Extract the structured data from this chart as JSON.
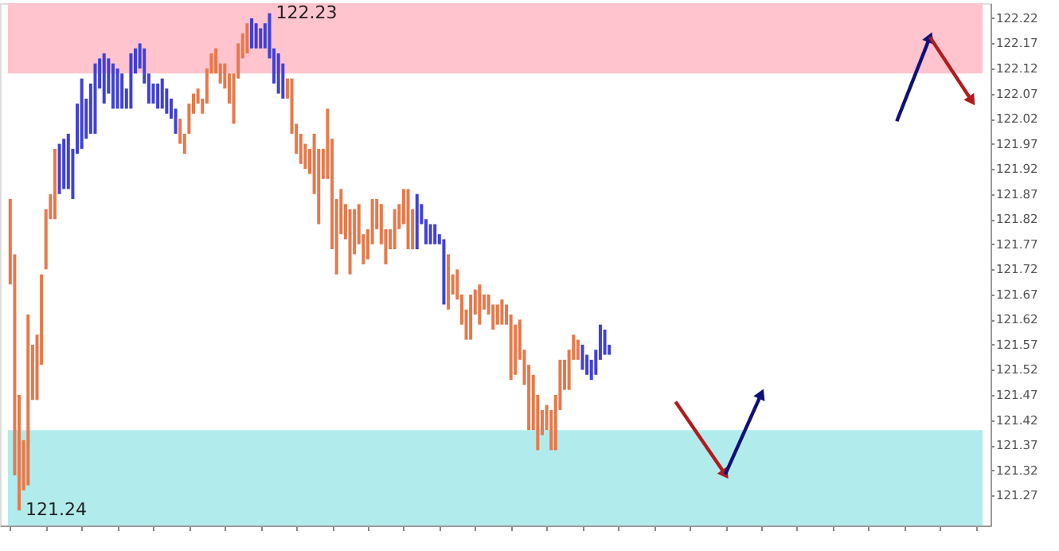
{
  "chart_data": {
    "type": "candlestick",
    "categories": [
      null,
      null,
      null,
      null,
      null,
      null,
      null,
      null,
      null,
      null,
      null,
      null,
      null,
      null,
      null,
      null,
      null,
      null,
      null,
      null,
      null,
      null,
      null,
      null,
      null,
      null,
      null,
      null,
      null,
      null,
      null,
      null,
      null,
      null,
      null,
      null,
      null,
      null,
      null,
      null,
      null,
      null,
      null,
      null,
      null,
      null,
      null,
      null,
      null,
      null,
      null,
      null,
      null,
      null,
      null,
      null,
      null,
      null,
      null,
      null,
      null,
      null,
      null,
      null,
      null,
      null,
      null,
      null,
      null,
      null,
      null,
      null,
      null,
      null,
      null,
      null,
      null,
      null,
      null,
      null,
      null,
      null,
      null,
      null,
      null,
      null,
      null,
      null,
      null,
      null,
      null,
      null,
      null,
      null,
      null,
      null,
      null,
      null,
      null,
      null,
      null,
      null,
      null,
      null,
      null,
      null,
      null,
      null,
      null,
      null,
      null,
      null,
      null,
      null,
      null,
      null,
      null,
      null,
      null,
      null,
      null,
      null,
      null,
      null,
      null,
      null,
      null,
      null,
      null,
      null,
      null,
      null,
      null,
      null,
      null,
      null,
      null,
      null,
      null,
      null,
      null,
      null,
      null,
      null,
      null,
      null,
      null,
      null,
      null,
      null,
      null,
      null,
      null,
      null,
      null,
      null,
      null,
      null,
      null,
      null,
      null,
      null,
      null,
      null,
      null,
      null,
      null,
      null,
      null,
      null,
      null,
      null,
      null,
      null,
      null,
      null,
      null,
      null,
      null,
      null,
      null,
      null,
      null,
      null,
      null,
      null,
      null,
      null,
      null,
      null,
      null,
      null,
      null,
      null,
      null,
      null,
      null,
      null,
      null,
      null,
      null,
      null,
      null,
      null,
      null,
      null,
      null,
      null,
      null,
      null,
      null,
      null,
      null,
      null,
      null,
      null,
      null,
      null
    ],
    "ylim": [
      121.21,
      122.25
    ],
    "yticks": [
      122.22,
      122.17,
      122.12,
      122.07,
      122.02,
      121.97,
      121.92,
      121.87,
      121.82,
      121.77,
      121.72,
      121.67,
      121.62,
      121.57,
      121.52,
      121.47,
      121.42,
      121.37,
      121.32,
      121.27
    ],
    "tick_labels": "y",
    "grid": false,
    "bands": [
      {
        "axis": "y",
        "from": 122.11,
        "to": 122.25,
        "color": "#ffc4ce"
      },
      {
        "axis": "y",
        "from": 121.21,
        "to": 121.4,
        "color": "#b2ebec"
      }
    ],
    "annotations": [
      "122.23",
      "121.24"
    ],
    "colors": [
      "#e8784a",
      "#e8784a",
      "#e8784a",
      "#e8784a",
      "#e8784a",
      "#e8784a",
      "#e8784a",
      "#e8784a",
      "#e8784a",
      "#e8784a",
      "#e8784a",
      "#4040d8",
      "#4040d8",
      "#4040d8",
      "#4040d8",
      "#4040d8",
      "#4040d8",
      "#4040d8",
      "#4040d8",
      "#4040d8",
      "#4040d8",
      "#4040d8",
      "#4040d8",
      "#4040d8",
      "#4040d8",
      "#4040d8",
      "#4040d8",
      "#4040d8",
      "#4040d8",
      "#4040d8",
      "#4040d8",
      "#4040d8",
      "#4040d8",
      "#4040d8",
      "#4040d8",
      "#4040d8",
      "#4040d8",
      "#4040d8",
      "#e8784a",
      "#e8784a",
      "#e8784a",
      "#e8784a",
      "#e8784a",
      "#e8784a",
      "#e8784a",
      "#e8784a",
      "#e8784a",
      "#e8784a",
      "#e8784a",
      "#e8784a",
      "#e8784a",
      "#e8784a",
      "#e8784a",
      "#e8784a",
      "#4040d8",
      "#4040d8",
      "#4040d8",
      "#4040d8",
      "#4040d8",
      "#4040d8",
      "#4040d8",
      "#4040d8",
      "#e8784a",
      "#e8784a",
      "#e8784a",
      "#e8784a",
      "#e8784a",
      "#e8784a",
      "#e8784a",
      "#e8784a",
      "#e8784a",
      "#e8784a",
      "#e8784a",
      "#e8784a",
      "#e8784a",
      "#e8784a",
      "#e8784a",
      "#e8784a",
      "#e8784a",
      "#e8784a",
      "#e8784a",
      "#e8784a",
      "#e8784a",
      "#e8784a",
      "#e8784a",
      "#e8784a",
      "#e8784a",
      "#e8784a",
      "#e8784a",
      "#e8784a",
      "#e8784a",
      "#4040d8",
      "#4040d8",
      "#4040d8",
      "#4040d8",
      "#4040d8",
      "#4040d8",
      "#4040d8",
      "#e8784a",
      "#e8784a",
      "#e8784a",
      "#e8784a",
      "#e8784a",
      "#e8784a",
      "#e8784a",
      "#e8784a",
      "#e8784a",
      "#e8784a",
      "#e8784a",
      "#e8784a",
      "#e8784a",
      "#e8784a",
      "#e8784a",
      "#e8784a",
      "#e8784a",
      "#e8784a",
      "#e8784a",
      "#e8784a",
      "#e8784a",
      "#e8784a",
      "#e8784a",
      "#e8784a",
      "#e8784a",
      "#e8784a",
      "#e8784a",
      "#e8784a",
      "#e8784a",
      "#e8784a",
      "#4040d8",
      "#4040d8",
      "#4040d8",
      "#4040d8",
      "#4040d8",
      "#4040d8",
      "#4040d8",
      null,
      null,
      null,
      null,
      null,
      null,
      null,
      null,
      null,
      null,
      null,
      null,
      null,
      null,
      null,
      null,
      null,
      null,
      null,
      null,
      null,
      null,
      null,
      null,
      null,
      null,
      null,
      null,
      null,
      null,
      null,
      null,
      null,
      null,
      null,
      null,
      null,
      null,
      null,
      null,
      null,
      null,
      null,
      null,
      null,
      null,
      null,
      null,
      null,
      null,
      null,
      null,
      null,
      null,
      null,
      null,
      null,
      null,
      null,
      null,
      null,
      null,
      null,
      null,
      null,
      null,
      null,
      null,
      null,
      null,
      null,
      null,
      null,
      null,
      null,
      null,
      null,
      null,
      null,
      null,
      null,
      null,
      null
    ],
    "ohlc": [
      [
        121.86,
        121.86,
        121.69,
        121.69
      ],
      [
        121.75,
        121.75,
        121.31,
        121.31
      ],
      [
        121.47,
        121.47,
        121.24,
        121.24
      ],
      [
        121.38,
        121.38,
        121.28,
        121.28
      ],
      [
        121.63,
        121.63,
        121.29,
        121.29
      ],
      [
        121.57,
        121.57,
        121.46,
        121.46
      ],
      [
        121.59,
        121.59,
        121.46,
        121.46
      ],
      [
        121.71,
        121.71,
        121.53,
        121.53
      ],
      [
        121.84,
        121.84,
        121.72,
        121.72
      ],
      [
        121.87,
        121.87,
        121.82,
        121.82
      ],
      [
        121.96,
        121.96,
        121.82,
        121.82
      ],
      [
        121.87,
        121.97,
        121.87,
        121.97
      ],
      [
        121.88,
        121.98,
        121.88,
        121.98
      ],
      [
        121.88,
        121.99,
        121.88,
        121.99
      ],
      [
        121.86,
        121.96,
        121.86,
        121.96
      ],
      [
        121.95,
        122.05,
        121.95,
        122.05
      ],
      [
        121.96,
        122.1,
        121.96,
        122.1
      ],
      [
        121.98,
        122.06,
        121.98,
        122.06
      ],
      [
        121.99,
        122.09,
        121.99,
        122.09
      ],
      [
        121.99,
        122.13,
        121.99,
        122.13
      ],
      [
        122.08,
        122.14,
        122.08,
        122.14
      ],
      [
        122.05,
        122.15,
        122.05,
        122.15
      ],
      [
        122.07,
        122.14,
        122.07,
        122.14
      ],
      [
        122.04,
        122.13,
        122.04,
        122.13
      ],
      [
        122.04,
        122.12,
        122.04,
        122.12
      ],
      [
        122.04,
        122.11,
        122.04,
        122.11
      ],
      [
        122.04,
        122.08,
        122.04,
        122.08
      ],
      [
        122.04,
        122.15,
        122.04,
        122.15
      ],
      [
        122.11,
        122.16,
        122.11,
        122.16
      ],
      [
        122.12,
        122.17,
        122.12,
        122.17
      ],
      [
        122.09,
        122.16,
        122.09,
        122.16
      ],
      [
        122.05,
        122.11,
        122.05,
        122.11
      ],
      [
        122.05,
        122.09,
        122.05,
        122.09
      ],
      [
        122.04,
        122.09,
        122.04,
        122.09
      ],
      [
        122.04,
        122.1,
        122.04,
        122.1
      ],
      [
        122.03,
        122.08,
        122.03,
        122.08
      ],
      [
        122.02,
        122.06,
        122.02,
        122.06
      ],
      [
        121.99,
        122.04,
        121.99,
        122.04
      ],
      [
        122.02,
        122.02,
        121.97,
        121.97
      ],
      [
        121.99,
        121.99,
        121.95,
        121.95
      ],
      [
        122.05,
        122.05,
        121.99,
        121.99
      ],
      [
        122.07,
        122.07,
        122.03,
        122.03
      ],
      [
        122.08,
        122.08,
        122.05,
        122.05
      ],
      [
        122.06,
        122.06,
        122.03,
        122.03
      ],
      [
        122.12,
        122.12,
        122.05,
        122.05
      ],
      [
        122.15,
        122.15,
        122.11,
        122.11
      ],
      [
        122.16,
        122.16,
        122.11,
        122.11
      ],
      [
        122.13,
        122.13,
        122.09,
        122.09
      ],
      [
        122.13,
        122.13,
        122.08,
        122.08
      ],
      [
        122.11,
        122.11,
        122.05,
        122.05
      ],
      [
        122.11,
        122.11,
        122.01,
        122.01
      ],
      [
        122.17,
        122.17,
        122.1,
        122.1
      ],
      [
        122.19,
        122.19,
        122.14,
        122.14
      ],
      [
        122.21,
        122.21,
        122.15,
        122.15
      ],
      [
        122.16,
        122.22,
        122.16,
        122.22
      ],
      [
        122.16,
        122.21,
        122.16,
        122.21
      ],
      [
        122.16,
        122.2,
        122.16,
        122.2
      ],
      [
        122.16,
        122.21,
        122.16,
        122.21
      ],
      [
        122.14,
        122.23,
        122.14,
        122.23
      ],
      [
        122.09,
        122.16,
        122.09,
        122.16
      ],
      [
        122.07,
        122.15,
        122.07,
        122.15
      ],
      [
        122.06,
        122.13,
        122.06,
        122.13
      ],
      [
        122.1,
        122.1,
        122.06,
        122.06
      ],
      [
        122.1,
        122.1,
        121.99,
        121.99
      ],
      [
        122.01,
        122.01,
        121.95,
        121.95
      ],
      [
        121.99,
        121.99,
        121.93,
        121.93
      ],
      [
        121.97,
        121.97,
        121.92,
        121.92
      ],
      [
        121.96,
        121.96,
        121.91,
        121.91
      ],
      [
        121.99,
        121.99,
        121.87,
        121.87
      ],
      [
        121.96,
        121.96,
        121.81,
        121.81
      ],
      [
        121.96,
        121.96,
        121.9,
        121.9
      ],
      [
        122.04,
        122.04,
        121.9,
        121.9
      ],
      [
        121.98,
        121.98,
        121.76,
        121.76
      ],
      [
        121.86,
        121.86,
        121.71,
        121.71
      ],
      [
        121.88,
        121.88,
        121.79,
        121.79
      ],
      [
        121.85,
        121.85,
        121.78,
        121.78
      ],
      [
        121.84,
        121.84,
        121.71,
        121.71
      ],
      [
        121.84,
        121.84,
        121.75,
        121.75
      ],
      [
        121.85,
        121.85,
        121.77,
        121.77
      ],
      [
        121.79,
        121.79,
        121.73,
        121.73
      ],
      [
        121.8,
        121.8,
        121.74,
        121.74
      ],
      [
        121.86,
        121.86,
        121.77,
        121.77
      ],
      [
        121.86,
        121.86,
        121.8,
        121.8
      ],
      [
        121.85,
        121.85,
        121.77,
        121.77
      ],
      [
        121.8,
        121.8,
        121.73,
        121.73
      ],
      [
        121.8,
        121.8,
        121.76,
        121.76
      ],
      [
        121.84,
        121.84,
        121.76,
        121.76
      ],
      [
        121.85,
        121.85,
        121.8,
        121.8
      ],
      [
        121.88,
        121.88,
        121.81,
        121.81
      ],
      [
        121.88,
        121.88,
        121.76,
        121.76
      ],
      [
        121.84,
        121.84,
        121.76,
        121.76
      ],
      [
        121.76,
        121.87,
        121.76,
        121.87
      ],
      [
        121.81,
        121.85,
        121.81,
        121.85
      ],
      [
        121.77,
        121.82,
        121.77,
        121.82
      ],
      [
        121.77,
        121.81,
        121.77,
        121.81
      ],
      [
        121.77,
        121.81,
        121.77,
        121.81
      ],
      [
        121.77,
        121.79,
        121.77,
        121.79
      ],
      [
        121.65,
        121.78,
        121.65,
        121.78
      ],
      [
        121.75,
        121.75,
        121.64,
        121.64
      ],
      [
        121.71,
        121.71,
        121.67,
        121.67
      ],
      [
        121.72,
        121.72,
        121.66,
        121.66
      ],
      [
        121.67,
        121.67,
        121.61,
        121.61
      ],
      [
        121.64,
        121.64,
        121.58,
        121.58
      ],
      [
        121.67,
        121.67,
        121.58,
        121.58
      ],
      [
        121.68,
        121.68,
        121.63,
        121.63
      ],
      [
        121.69,
        121.69,
        121.61,
        121.61
      ],
      [
        121.67,
        121.67,
        121.64,
        121.64
      ],
      [
        121.67,
        121.67,
        121.63,
        121.63
      ],
      [
        121.65,
        121.65,
        121.6,
        121.6
      ],
      [
        121.65,
        121.65,
        121.61,
        121.61
      ],
      [
        121.66,
        121.66,
        121.61,
        121.61
      ],
      [
        121.65,
        121.65,
        121.61,
        121.61
      ],
      [
        121.63,
        121.63,
        121.5,
        121.5
      ],
      [
        121.61,
        121.61,
        121.51,
        121.51
      ],
      [
        121.62,
        121.62,
        121.54,
        121.54
      ],
      [
        121.56,
        121.56,
        121.49,
        121.49
      ],
      [
        121.53,
        121.53,
        121.4,
        121.4
      ],
      [
        121.51,
        121.51,
        121.4,
        121.4
      ],
      [
        121.47,
        121.47,
        121.36,
        121.36
      ],
      [
        121.44,
        121.44,
        121.39,
        121.39
      ],
      [
        121.45,
        121.45,
        121.4,
        121.4
      ],
      [
        121.44,
        121.44,
        121.36,
        121.36
      ],
      [
        121.47,
        121.47,
        121.36,
        121.36
      ],
      [
        121.54,
        121.54,
        121.44,
        121.44
      ],
      [
        121.54,
        121.54,
        121.48,
        121.48
      ],
      [
        121.56,
        121.56,
        121.48,
        121.48
      ],
      [
        121.59,
        121.59,
        121.54,
        121.54
      ],
      [
        121.58,
        121.58,
        121.54,
        121.54
      ],
      [
        121.52,
        121.57,
        121.52,
        121.57
      ],
      [
        121.51,
        121.55,
        121.51,
        121.55
      ],
      [
        121.5,
        121.54,
        121.5,
        121.54
      ],
      [
        121.51,
        121.56,
        121.51,
        121.56
      ],
      [
        121.54,
        121.61,
        121.54,
        121.61
      ],
      [
        121.55,
        121.6,
        121.55,
        121.6
      ],
      [
        121.55,
        121.57,
        121.55,
        121.57
      ],
      null,
      null,
      null,
      null,
      null,
      null,
      null,
      null,
      null,
      null,
      null,
      null,
      null,
      null,
      null,
      null,
      null,
      null,
      null,
      null,
      null,
      null,
      null,
      null,
      null,
      null,
      null,
      null,
      null,
      null,
      null,
      null,
      null,
      null,
      null,
      null,
      null,
      null,
      null,
      null,
      null,
      null,
      null,
      null,
      null,
      null,
      null,
      null,
      null,
      null,
      null,
      null,
      null,
      null,
      null,
      null,
      null,
      null,
      null,
      null,
      null,
      null,
      null,
      null,
      null,
      null,
      null,
      null,
      null,
      null,
      null,
      null,
      null,
      null,
      null,
      null,
      null,
      null,
      null,
      null,
      null,
      null,
      null
    ]
  }
}
